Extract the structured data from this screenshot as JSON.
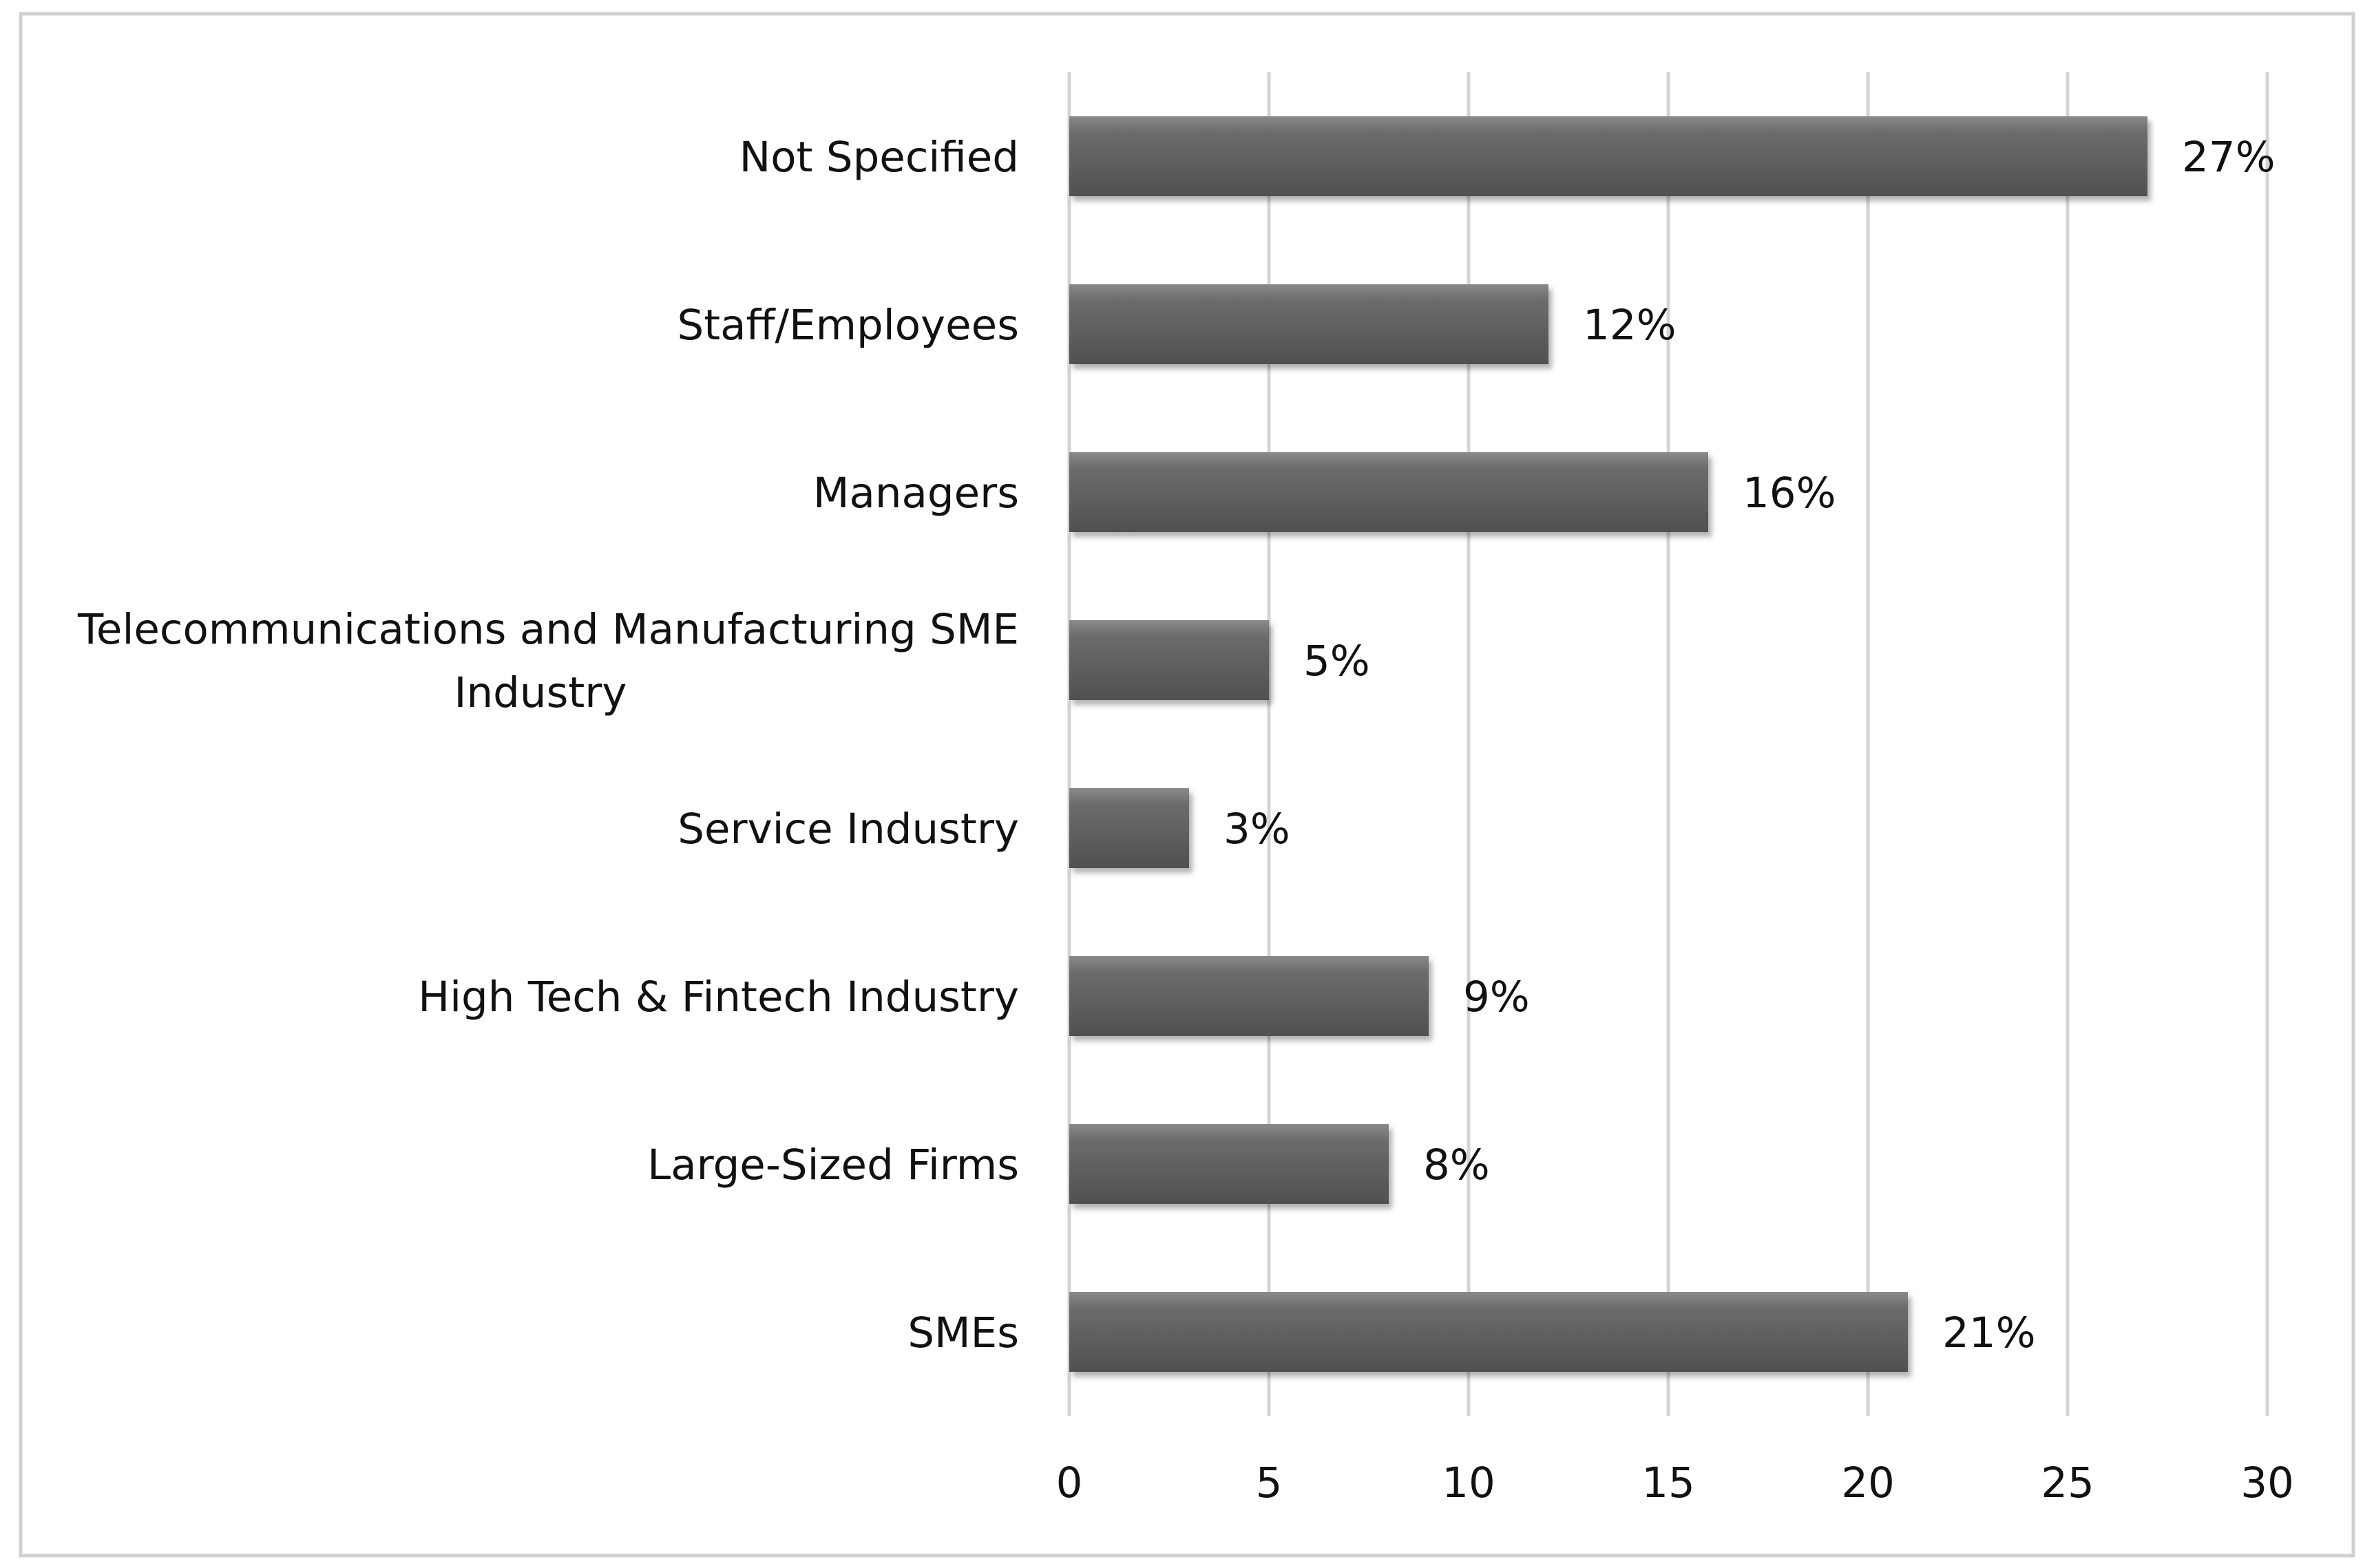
{
  "chart_data": {
    "type": "bar",
    "orientation": "horizontal",
    "title": "",
    "xlabel": "",
    "ylabel": "",
    "xlim": [
      0,
      30
    ],
    "xticks": [
      0,
      5,
      10,
      15,
      20,
      25,
      30
    ],
    "xtick_labels": [
      "0",
      "5",
      "10",
      "15",
      "20",
      "25",
      "30"
    ],
    "grid": true,
    "categories": [
      [
        "Not Specified"
      ],
      [
        "Staff/Employees"
      ],
      [
        "Managers"
      ],
      [
        "Telecommunications and Manufacturing SME",
        "Industry"
      ],
      [
        "Service Industry"
      ],
      [
        "High Tech & Fintech Industry"
      ],
      [
        "Large-Sized Firms"
      ],
      [
        "SMEs"
      ]
    ],
    "values": [
      27,
      12,
      16,
      5,
      3,
      9,
      8,
      21
    ],
    "data_labels": [
      "27%",
      "12%",
      "16%",
      "5%",
      "3%",
      "9%",
      "8%",
      "21%"
    ],
    "bar_color": "#5e5e5e",
    "grid_color": "#d4d4d4",
    "frame_color": "#d0d0d0"
  }
}
